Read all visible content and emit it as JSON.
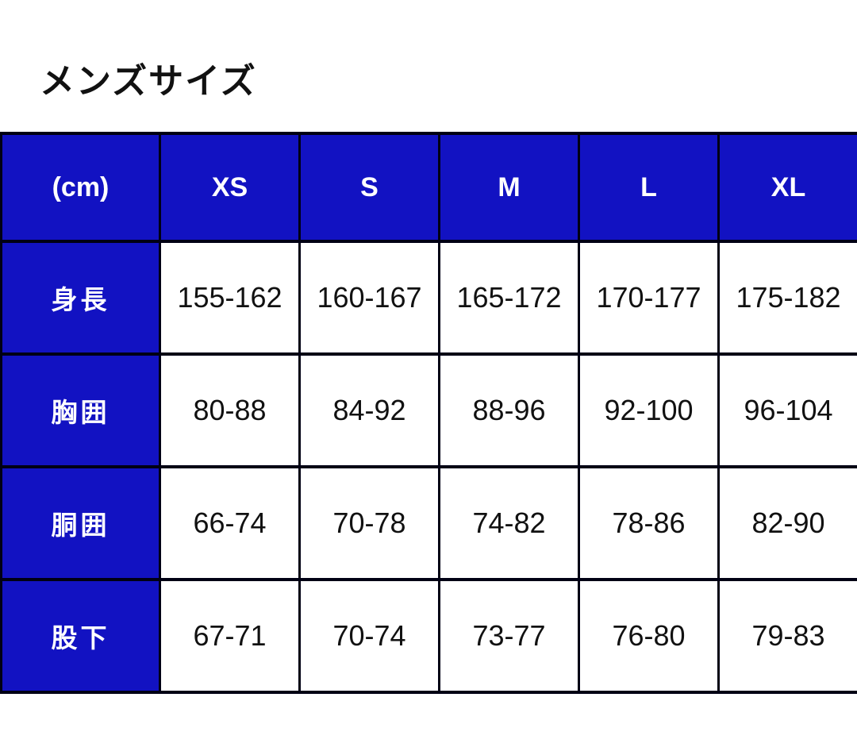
{
  "title": "メンズサイズ",
  "colors": {
    "page_bg": "#ffffff",
    "header_bg": "#1212c2",
    "header_text": "#ffffff",
    "border": "#000014",
    "cell_bg": "#ffffff",
    "cell_text": "#111111"
  },
  "size_table": {
    "unit_header": "(cm)",
    "size_headers": [
      "XS",
      "S",
      "M",
      "L",
      "XL"
    ],
    "rows": [
      {
        "label": "身長",
        "values": [
          "155-162",
          "160-167",
          "165-172",
          "170-177",
          "175-182"
        ]
      },
      {
        "label": "胸囲",
        "values": [
          "80-88",
          "84-92",
          "88-96",
          "92-100",
          "96-104"
        ]
      },
      {
        "label": "胴囲",
        "values": [
          "66-74",
          "70-78",
          "74-82",
          "78-86",
          "82-90"
        ]
      },
      {
        "label": "股下",
        "values": [
          "67-71",
          "70-74",
          "73-77",
          "76-80",
          "79-83"
        ]
      }
    ]
  }
}
